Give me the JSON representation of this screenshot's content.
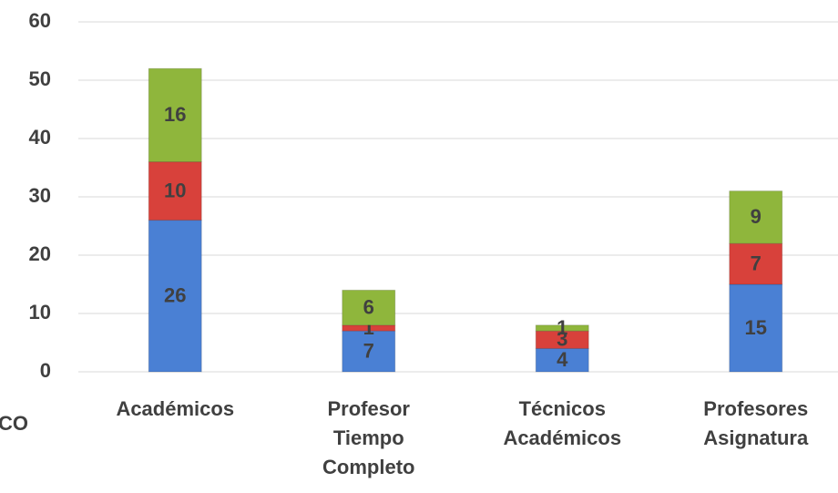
{
  "chart_data": {
    "type": "stacked_bar",
    "categories": [
      "Académicos",
      "Profesor Tiempo Completo",
      "Técnicos Académicos",
      "Profesores Asignatura"
    ],
    "series": [
      {
        "color": "#4a80d4",
        "values": [
          26,
          7,
          4,
          15
        ]
      },
      {
        "color": "#d8413b",
        "values": [
          10,
          1,
          3,
          7
        ]
      },
      {
        "color": "#8fb63c",
        "values": [
          16,
          6,
          1,
          9
        ]
      }
    ],
    "ylim": [
      0,
      60
    ],
    "yticks": [
      0,
      10,
      20,
      30,
      40,
      50,
      60
    ],
    "grid": true,
    "annotation": "CO"
  }
}
